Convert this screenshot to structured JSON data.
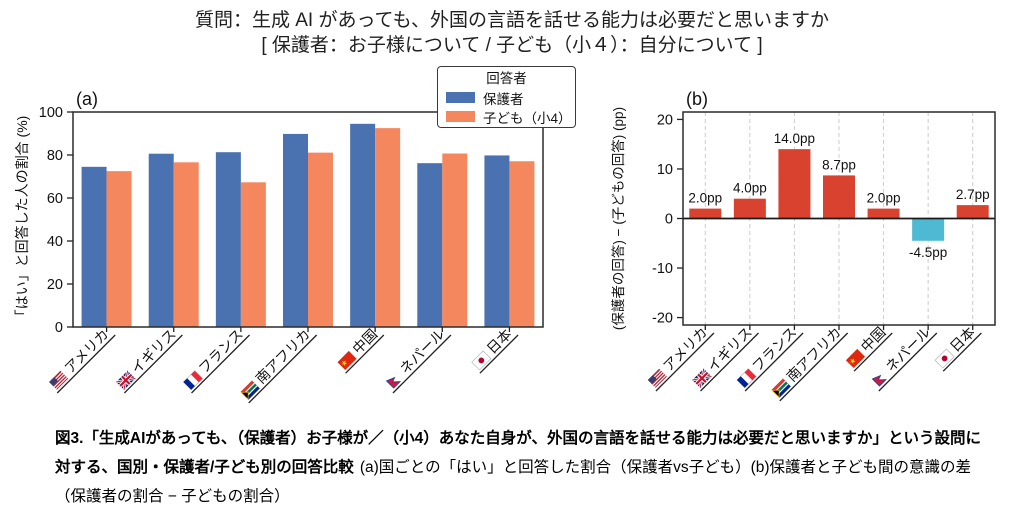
{
  "title": {
    "line1": "質問：生成 AI があっても、外国の言語を話せる能力は必要だと思いますか",
    "line2": "[ 保護者：お子様について / 子ども（小４）：自分について ]"
  },
  "legend": {
    "title": "回答者",
    "items": [
      {
        "label": "保護者",
        "color": "#4a72b0"
      },
      {
        "label": "子ども（小4）",
        "color": "#f5875f"
      }
    ]
  },
  "chart_data": [
    {
      "type": "bar",
      "panel_label": "(a)",
      "ylabel": "「はい」と回答した人の割合 (%)",
      "ylim": [
        0,
        100
      ],
      "yticks": [
        0,
        20,
        40,
        60,
        80,
        100
      ],
      "grid": false,
      "legend_position": "upper-right-outside",
      "categories": [
        "アメリカ",
        "イギリス",
        "フランス",
        "南アフリカ",
        "中国",
        "ネパール",
        "日本"
      ],
      "flags": [
        "us",
        "gb",
        "fr",
        "za",
        "cn",
        "np",
        "jp"
      ],
      "series": [
        {
          "name": "保護者",
          "color": "#4a72b0",
          "values": [
            74.5,
            80.6,
            81.3,
            89.8,
            94.5,
            76.2,
            79.8
          ]
        },
        {
          "name": "子ども（小4）",
          "color": "#f5875f",
          "values": [
            72.5,
            76.6,
            67.3,
            81.1,
            92.5,
            80.7,
            77.1
          ]
        }
      ]
    },
    {
      "type": "bar",
      "panel_label": "(b)",
      "ylabel": "(保護者の回答) − (子どもの回答) (pp)",
      "ylim": [
        -21.5,
        21.5
      ],
      "yticks": [
        -20,
        -10,
        0,
        10,
        20
      ],
      "grid": true,
      "categories": [
        "アメリカ",
        "イギリス",
        "フランス",
        "南アフリカ",
        "中国",
        "ネパール",
        "日本"
      ],
      "flags": [
        "us",
        "gb",
        "fr",
        "za",
        "cn",
        "np",
        "jp"
      ],
      "values": [
        2.0,
        4.0,
        14.0,
        8.7,
        2.0,
        -4.5,
        2.7
      ],
      "bar_labels": [
        "2.0pp",
        "4.0pp",
        "14.0pp",
        "8.7pp",
        "2.0pp",
        "-4.5pp",
        "2.7pp"
      ],
      "positive_color": "#d9422f",
      "negative_color": "#4db9d2"
    }
  ],
  "caption": {
    "bold": "図3.「生成AIがあっても、（保護者）お子様が／（小4）あなた自身が、外国の言語を話せる能力は必要だと思いますか」という設問に対する、国別・保護者/子ども別の回答比較",
    "regular": "(a)国ごとの「はい」と回答した割合（保護者vs子ども）(b)保護者と子ども間の意識の差（保護者の割合 − 子どもの割合）"
  }
}
